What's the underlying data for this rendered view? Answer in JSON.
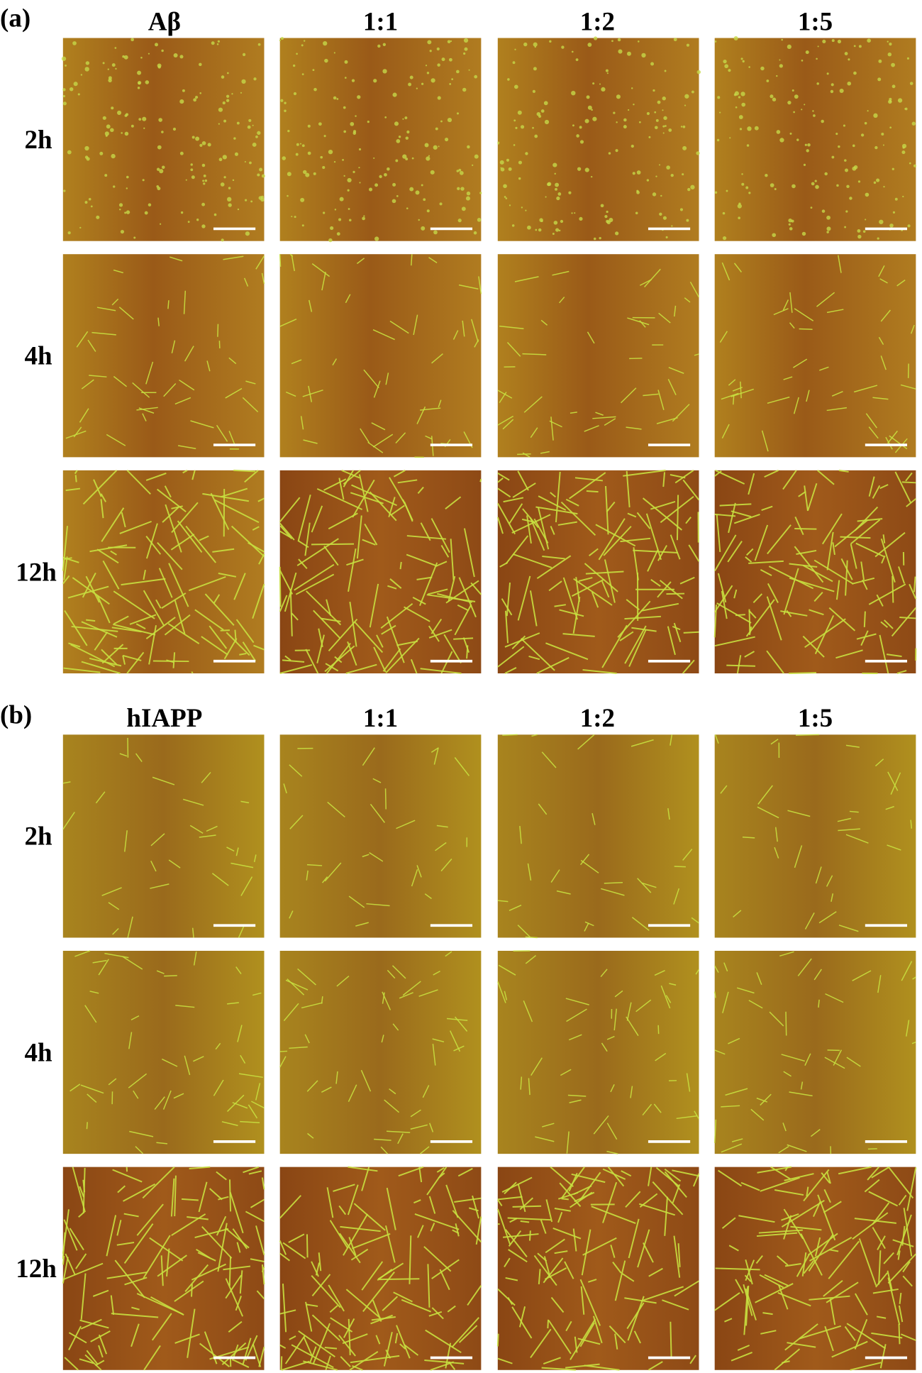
{
  "panels": [
    {
      "label": "(a)",
      "columns": [
        "Aβ",
        "1:1",
        "1:2",
        "1:5"
      ],
      "rows": [
        "2h",
        "4h",
        "12h"
      ]
    },
    {
      "label": "(b)",
      "columns": [
        "hIAPP",
        "1:1",
        "1:2",
        "1:5"
      ],
      "rows": [
        "2h",
        "4h",
        "12h"
      ]
    }
  ]
}
